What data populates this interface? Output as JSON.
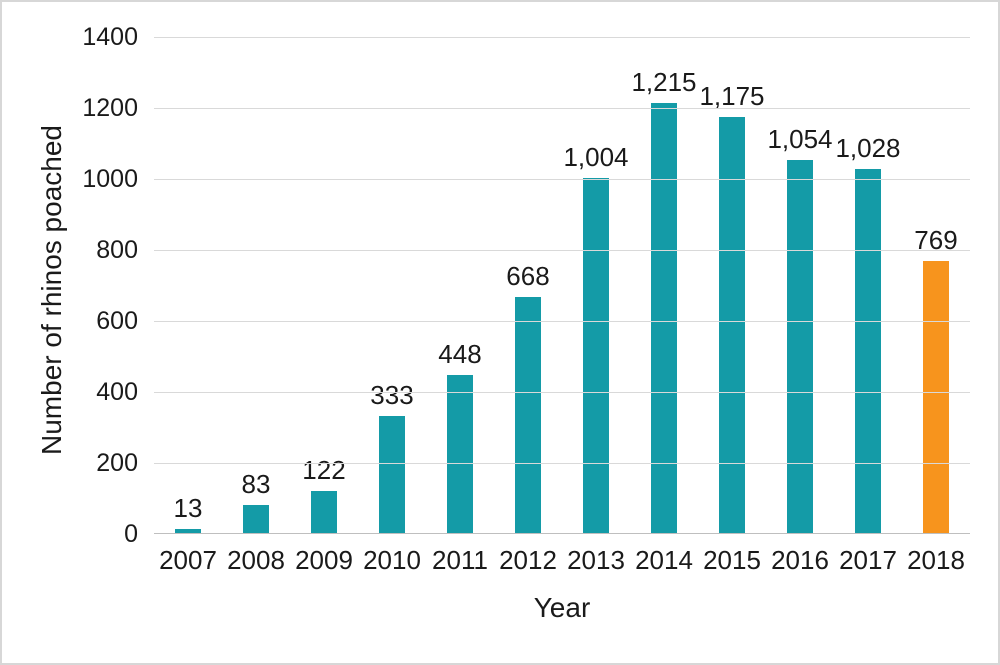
{
  "figure": {
    "background": "#ffffff",
    "border_color": "#d7d7d7"
  },
  "chart_data": {
    "type": "bar",
    "title": "",
    "xlabel": "Year",
    "ylabel": "Number of rhinos poached",
    "categories": [
      "2007",
      "2008",
      "2009",
      "2010",
      "2011",
      "2012",
      "2013",
      "2014",
      "2015",
      "2016",
      "2017",
      "2018"
    ],
    "values": [
      13,
      83,
      122,
      333,
      448,
      668,
      1004,
      1215,
      1175,
      1054,
      1028,
      769
    ],
    "value_labels": [
      "13",
      "83",
      "122",
      "333",
      "448",
      "668",
      "1,004",
      "1,215",
      "1,175",
      "1,054",
      "1,028",
      "769"
    ],
    "ylim": [
      0,
      1400
    ],
    "ytick_interval": 200,
    "yticks": [
      "0",
      "200",
      "400",
      "600",
      "800",
      "1000",
      "1200",
      "1400"
    ],
    "grid": true,
    "legend": "none",
    "bar_color": "#149ba7",
    "highlight_color": "#f7941d",
    "highlight_index": 11,
    "gridline_color": "#d9d9d9",
    "axis_line_color": "#bfbfbf",
    "text_color": "#1a1a1a"
  }
}
